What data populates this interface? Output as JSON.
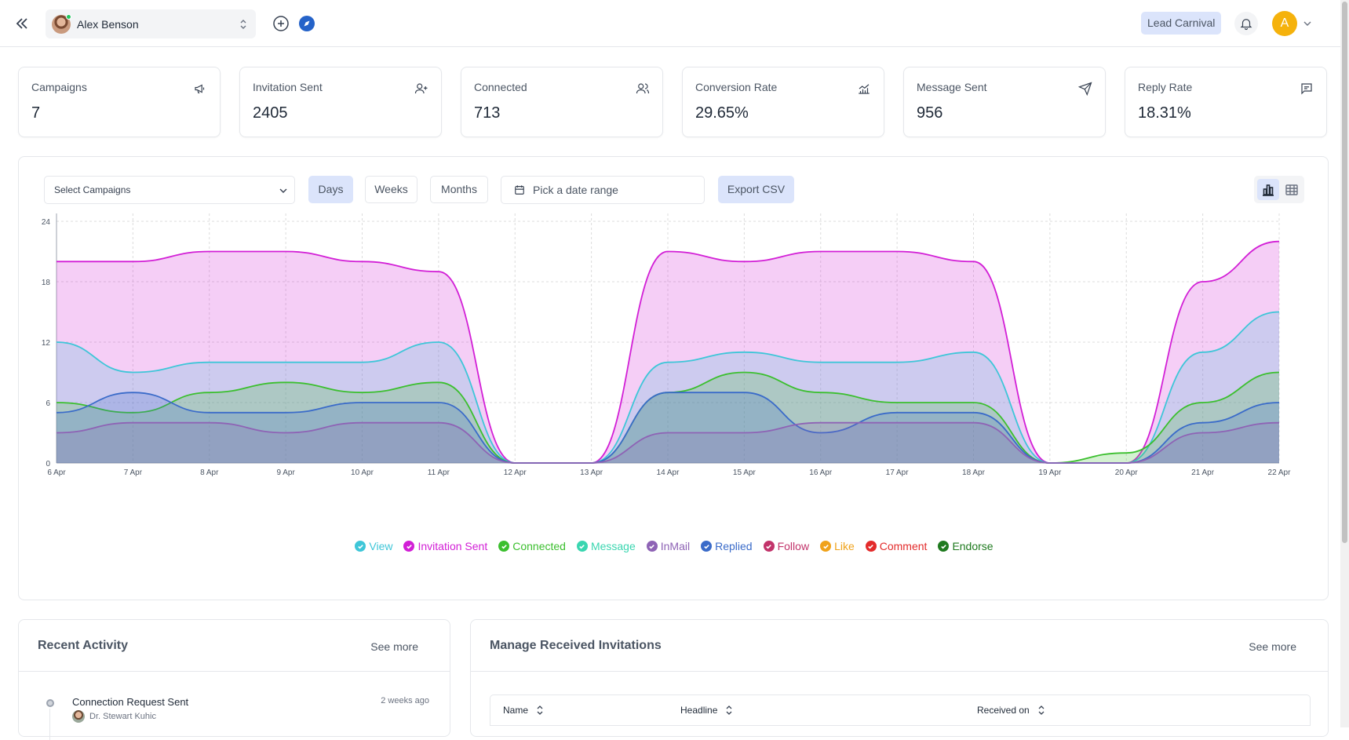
{
  "header": {
    "account_name": "Alex Benson",
    "workspace_label": "Lead Carnival",
    "user_initial": "A"
  },
  "stats": [
    {
      "label": "Campaigns",
      "value": "7",
      "icon": "megaphone-icon"
    },
    {
      "label": "Invitation Sent",
      "value": "2405",
      "icon": "user-plus-icon"
    },
    {
      "label": "Connected",
      "value": "713",
      "icon": "users-icon"
    },
    {
      "label": "Conversion Rate",
      "value": "29.65%",
      "icon": "chart-line-icon"
    },
    {
      "label": "Message Sent",
      "value": "956",
      "icon": "send-icon"
    },
    {
      "label": "Reply Rate",
      "value": "18.31%",
      "icon": "message-square-icon"
    }
  ],
  "filters": {
    "campaign_placeholder": "Select Campaigns",
    "days_label": "Days",
    "weeks_label": "Weeks",
    "months_label": "Months",
    "date_range_placeholder": "Pick a date range",
    "export_label": "Export CSV"
  },
  "chart_data": {
    "type": "area",
    "x": [
      "6 Apr",
      "7 Apr",
      "8 Apr",
      "9 Apr",
      "10 Apr",
      "11 Apr",
      "12 Apr",
      "13 Apr",
      "14 Apr",
      "15 Apr",
      "16 Apr",
      "17 Apr",
      "18 Apr",
      "19 Apr",
      "20 Apr",
      "21 Apr",
      "22 Apr"
    ],
    "ylim": [
      0,
      24
    ],
    "yticks": [
      0,
      6,
      12,
      18,
      24
    ],
    "grid": true,
    "legend_position": "bottom",
    "series": [
      {
        "name": "View",
        "color": "#3ec6d8",
        "values": [
          12,
          9,
          10,
          10,
          10,
          12,
          0,
          0,
          10,
          11,
          10,
          10,
          11,
          0,
          0,
          11,
          15
        ]
      },
      {
        "name": "Invitation Sent",
        "color": "#d21fd6",
        "values": [
          20,
          20,
          21,
          21,
          20,
          19,
          0,
          0,
          21,
          20,
          21,
          21,
          20,
          0,
          0,
          18,
          22
        ]
      },
      {
        "name": "Connected",
        "color": "#3bbf2e",
        "values": [
          6,
          5,
          7,
          8,
          7,
          8,
          0,
          0,
          7,
          9,
          7,
          6,
          6,
          0,
          1,
          6,
          9
        ]
      },
      {
        "name": "Message",
        "color": "#3ad6b0",
        "values": [
          0,
          0,
          0,
          0,
          0,
          0,
          0,
          0,
          0,
          0,
          0,
          0,
          0,
          0,
          0,
          0,
          0
        ]
      },
      {
        "name": "InMail",
        "color": "#8e63b5",
        "values": [
          3,
          4,
          4,
          3,
          4,
          4,
          0,
          0,
          3,
          3,
          4,
          4,
          4,
          0,
          0,
          3,
          4
        ]
      },
      {
        "name": "Replied",
        "color": "#3a6bc9",
        "values": [
          5,
          7,
          5,
          5,
          6,
          6,
          0,
          0,
          7,
          7,
          3,
          5,
          5,
          0,
          0,
          4,
          6
        ]
      },
      {
        "name": "Follow",
        "color": "#c2336a",
        "values": [
          0,
          0,
          0,
          0,
          0,
          0,
          0,
          0,
          0,
          0,
          0,
          0,
          0,
          0,
          0,
          0,
          0
        ]
      },
      {
        "name": "Like",
        "color": "#f0a21a",
        "values": [
          0,
          0,
          0,
          0,
          0,
          0,
          0,
          0,
          0,
          0,
          0,
          0,
          0,
          0,
          0,
          0,
          0
        ]
      },
      {
        "name": "Comment",
        "color": "#e32b2b",
        "values": [
          0,
          0,
          0,
          0,
          0,
          0,
          0,
          0,
          0,
          0,
          0,
          0,
          0,
          0,
          0,
          0,
          0
        ]
      },
      {
        "name": "Endorse",
        "color": "#1e7a1e",
        "values": [
          0,
          0,
          0,
          0,
          0,
          0,
          0,
          0,
          0,
          0,
          0,
          0,
          0,
          0,
          0,
          0,
          0
        ]
      }
    ]
  },
  "recent_activity": {
    "title": "Recent Activity",
    "see_more": "See more",
    "items": [
      {
        "title": "Connection Request Sent",
        "time": "2 weeks ago",
        "person": "Dr. Stewart Kuhic"
      }
    ]
  },
  "invitations": {
    "title": "Manage Received Invitations",
    "see_more": "See more",
    "columns": [
      "Name",
      "Headline",
      "Received on"
    ]
  }
}
